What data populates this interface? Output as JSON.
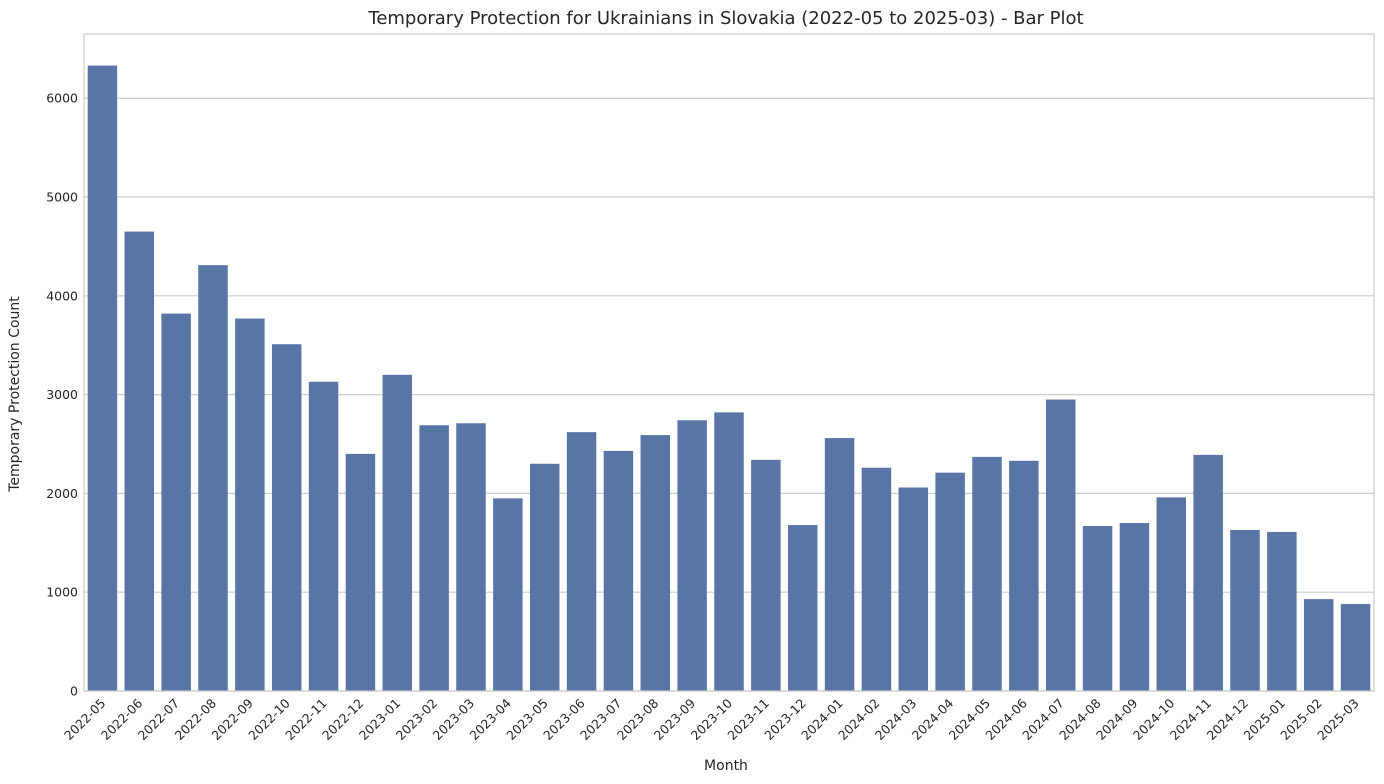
{
  "chart_data": {
    "type": "bar",
    "title": "Temporary Protection for Ukrainians in Slovakia (2022-05 to 2025-03) - Bar Plot",
    "xlabel": "Month",
    "ylabel": "Temporary Protection Count",
    "ylim": [
      0,
      6650
    ],
    "yticks": [
      0,
      1000,
      2000,
      3000,
      4000,
      5000,
      6000
    ],
    "grid": "horizontal",
    "color": "#5875a6",
    "categories": [
      "2022-05",
      "2022-06",
      "2022-07",
      "2022-08",
      "2022-09",
      "2022-10",
      "2022-11",
      "2022-12",
      "2023-01",
      "2023-02",
      "2023-03",
      "2023-04",
      "2023-05",
      "2023-06",
      "2023-07",
      "2023-08",
      "2023-09",
      "2023-10",
      "2023-11",
      "2023-12",
      "2024-01",
      "2024-02",
      "2024-03",
      "2024-04",
      "2024-05",
      "2024-06",
      "2024-07",
      "2024-08",
      "2024-09",
      "2024-10",
      "2024-11",
      "2024-12",
      "2025-01",
      "2025-02",
      "2025-03"
    ],
    "values": [
      6330,
      4650,
      3820,
      4310,
      3770,
      3510,
      3130,
      2400,
      3200,
      2690,
      2710,
      1950,
      2300,
      2620,
      2430,
      2590,
      2740,
      2820,
      2340,
      1680,
      2560,
      2260,
      2060,
      2210,
      2370,
      2330,
      2950,
      1670,
      1700,
      1960,
      2390,
      1630,
      1610,
      930,
      880
    ]
  }
}
